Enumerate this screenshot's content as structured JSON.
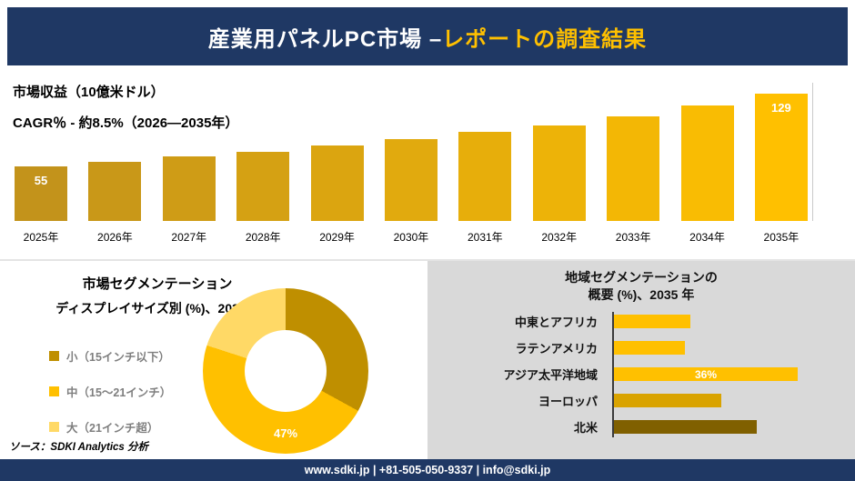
{
  "header": {
    "title_white": "産業用パネルPC市場 –",
    "title_accent": "レポートの調査結果"
  },
  "colors": {
    "navy": "#1F3864",
    "accent": "#FFC000",
    "panel_gray": "#D9D9D9"
  },
  "chart_data": [
    {
      "type": "bar",
      "title": "市場収益（10億米ドル）",
      "subtitle": "CAGR％ - 約8.5%（2026―2035年）",
      "categories": [
        "2025年",
        "2026年",
        "2027年",
        "2028年",
        "2029年",
        "2030年",
        "2031年",
        "2032年",
        "2033年",
        "2034年",
        "2035年"
      ],
      "values": [
        55,
        60,
        65,
        70,
        76,
        83,
        90,
        97,
        106,
        117,
        129
      ],
      "data_labels": {
        "first": "55",
        "last": "129"
      },
      "xlabel": "",
      "ylabel": "市場収益（10億米ドル）",
      "ylim": [
        0,
        140
      ],
      "grid": false,
      "bar_color_start": "#C3931B",
      "bar_color_end": "#FFC000"
    },
    {
      "type": "pie",
      "donut": true,
      "title": "市場セグメンテーション",
      "subtitle": "ディスプレイサイズ別 (%)、2035年",
      "labels": [
        "小（15インチ以下）",
        "中（15～21インチ）",
        "大（21インチ超）"
      ],
      "values": [
        33,
        47,
        20
      ],
      "colors": [
        "#BF8F00",
        "#FFC000",
        "#FFD966"
      ],
      "shown_label": "47%",
      "legend_position": "left"
    },
    {
      "type": "bar",
      "orientation": "horizontal",
      "title_line1": "地域セグメンテーションの",
      "title_line2": "概要 (%)、2035 年",
      "xlim": [
        0,
        40
      ],
      "grid": false,
      "rows": [
        {
          "label": "中東とアフリカ",
          "value": 15,
          "color": "#FFC000"
        },
        {
          "label": "ラテンアメリカ",
          "value": 14,
          "color": "#FFC000"
        },
        {
          "label": "アジア太平洋地域",
          "value": 36,
          "color": "#FFC000",
          "value_label": "36%"
        },
        {
          "label": "ヨーロッパ",
          "value": 21,
          "color": "#D9A300"
        },
        {
          "label": "北米",
          "value": 28,
          "color": "#806000"
        }
      ]
    }
  ],
  "source": "ソース：SDKI Analytics 分析",
  "footer": {
    "text": "www.sdki.jp | +81-505-050-9337 | info@sdki.jp"
  }
}
